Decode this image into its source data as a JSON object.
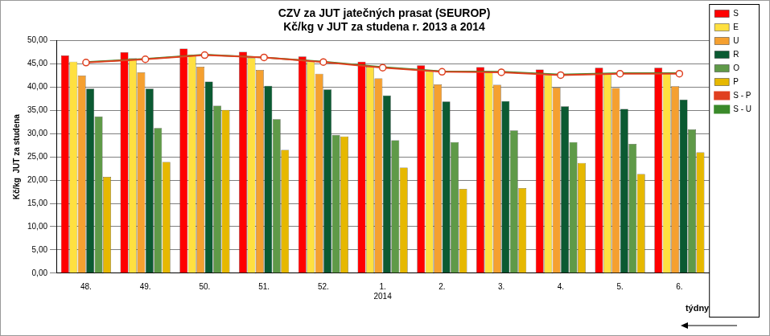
{
  "chart_data": {
    "type": "bar",
    "title": [
      "CZV za JUT jatečných prasat (SEUROP)",
      "Kč/kg v JUT za studena r. 2013 a 2014"
    ],
    "y_label": "Kč/kg  JUT za studena",
    "x_label": "týdny",
    "categories": [
      "48.",
      "49.",
      "50.",
      "51.",
      "52.",
      "1.",
      "2.",
      "3.",
      "4.",
      "5.",
      "6."
    ],
    "annotations": [
      {
        "text": "2014",
        "category": "1."
      }
    ],
    "series": [
      {
        "name": "S",
        "type": "bar",
        "color": "#ff0000",
        "values": [
          46.8,
          47.5,
          48.3,
          47.6,
          46.6,
          45.5,
          44.7,
          44.3,
          43.8,
          44.2,
          44.2
        ]
      },
      {
        "name": "E",
        "type": "bar",
        "color": "#ffe040",
        "values": [
          45.5,
          46.2,
          47.0,
          46.3,
          45.5,
          44.4,
          43.4,
          43.2,
          42.6,
          43.0,
          43.0
        ]
      },
      {
        "name": "U",
        "type": "bar",
        "color": "#f5a030",
        "values": [
          42.5,
          43.2,
          44.4,
          43.7,
          42.9,
          41.9,
          40.6,
          40.5,
          39.9,
          39.8,
          40.2
        ]
      },
      {
        "name": "R",
        "type": "bar",
        "color": "#0b5a32",
        "values": [
          39.7,
          39.7,
          41.2,
          40.3,
          39.5,
          38.2,
          36.9,
          37.0,
          35.9,
          35.3,
          37.3
        ]
      },
      {
        "name": "O",
        "type": "bar",
        "color": "#5f9a48",
        "values": [
          33.7,
          31.2,
          36.0,
          33.1,
          29.7,
          28.6,
          28.2,
          30.7,
          28.2,
          27.8,
          30.9
        ]
      },
      {
        "name": "P",
        "type": "bar",
        "color": "#e6b800",
        "values": [
          20.7,
          23.9,
          35.1,
          26.5,
          29.4,
          22.7,
          18.1,
          18.3,
          23.7,
          21.3,
          26.0
        ]
      },
      {
        "name": "S - P",
        "type": "line",
        "color": "#e04020",
        "marker": "circle",
        "values": [
          45.3,
          46.0,
          46.9,
          46.4,
          45.4,
          44.2,
          43.3,
          43.2,
          42.6,
          42.9,
          42.9
        ]
      },
      {
        "name": "S - U",
        "type": "line",
        "color": "#3a8a2a",
        "marker": "diamond",
        "values": [
          45.4,
          46.1,
          47.0,
          46.4,
          45.5,
          44.3,
          43.4,
          43.3,
          42.7,
          43.0,
          43.0
        ]
      }
    ],
    "ylim": [
      0,
      50
    ],
    "yticks": [
      {
        "value": 0,
        "label": "0,00"
      },
      {
        "value": 5,
        "label": "5,00"
      },
      {
        "value": 10,
        "label": "10,00"
      },
      {
        "value": 15,
        "label": "15,00"
      },
      {
        "value": 20,
        "label": "20,00"
      },
      {
        "value": 25,
        "label": "25,00"
      },
      {
        "value": 30,
        "label": "30,00"
      },
      {
        "value": 35,
        "label": "35,00"
      },
      {
        "value": 40,
        "label": "40,00"
      },
      {
        "value": 45,
        "label": "45,00"
      },
      {
        "value": 50,
        "label": "50,00"
      }
    ],
    "grid": true,
    "legend": "right"
  }
}
